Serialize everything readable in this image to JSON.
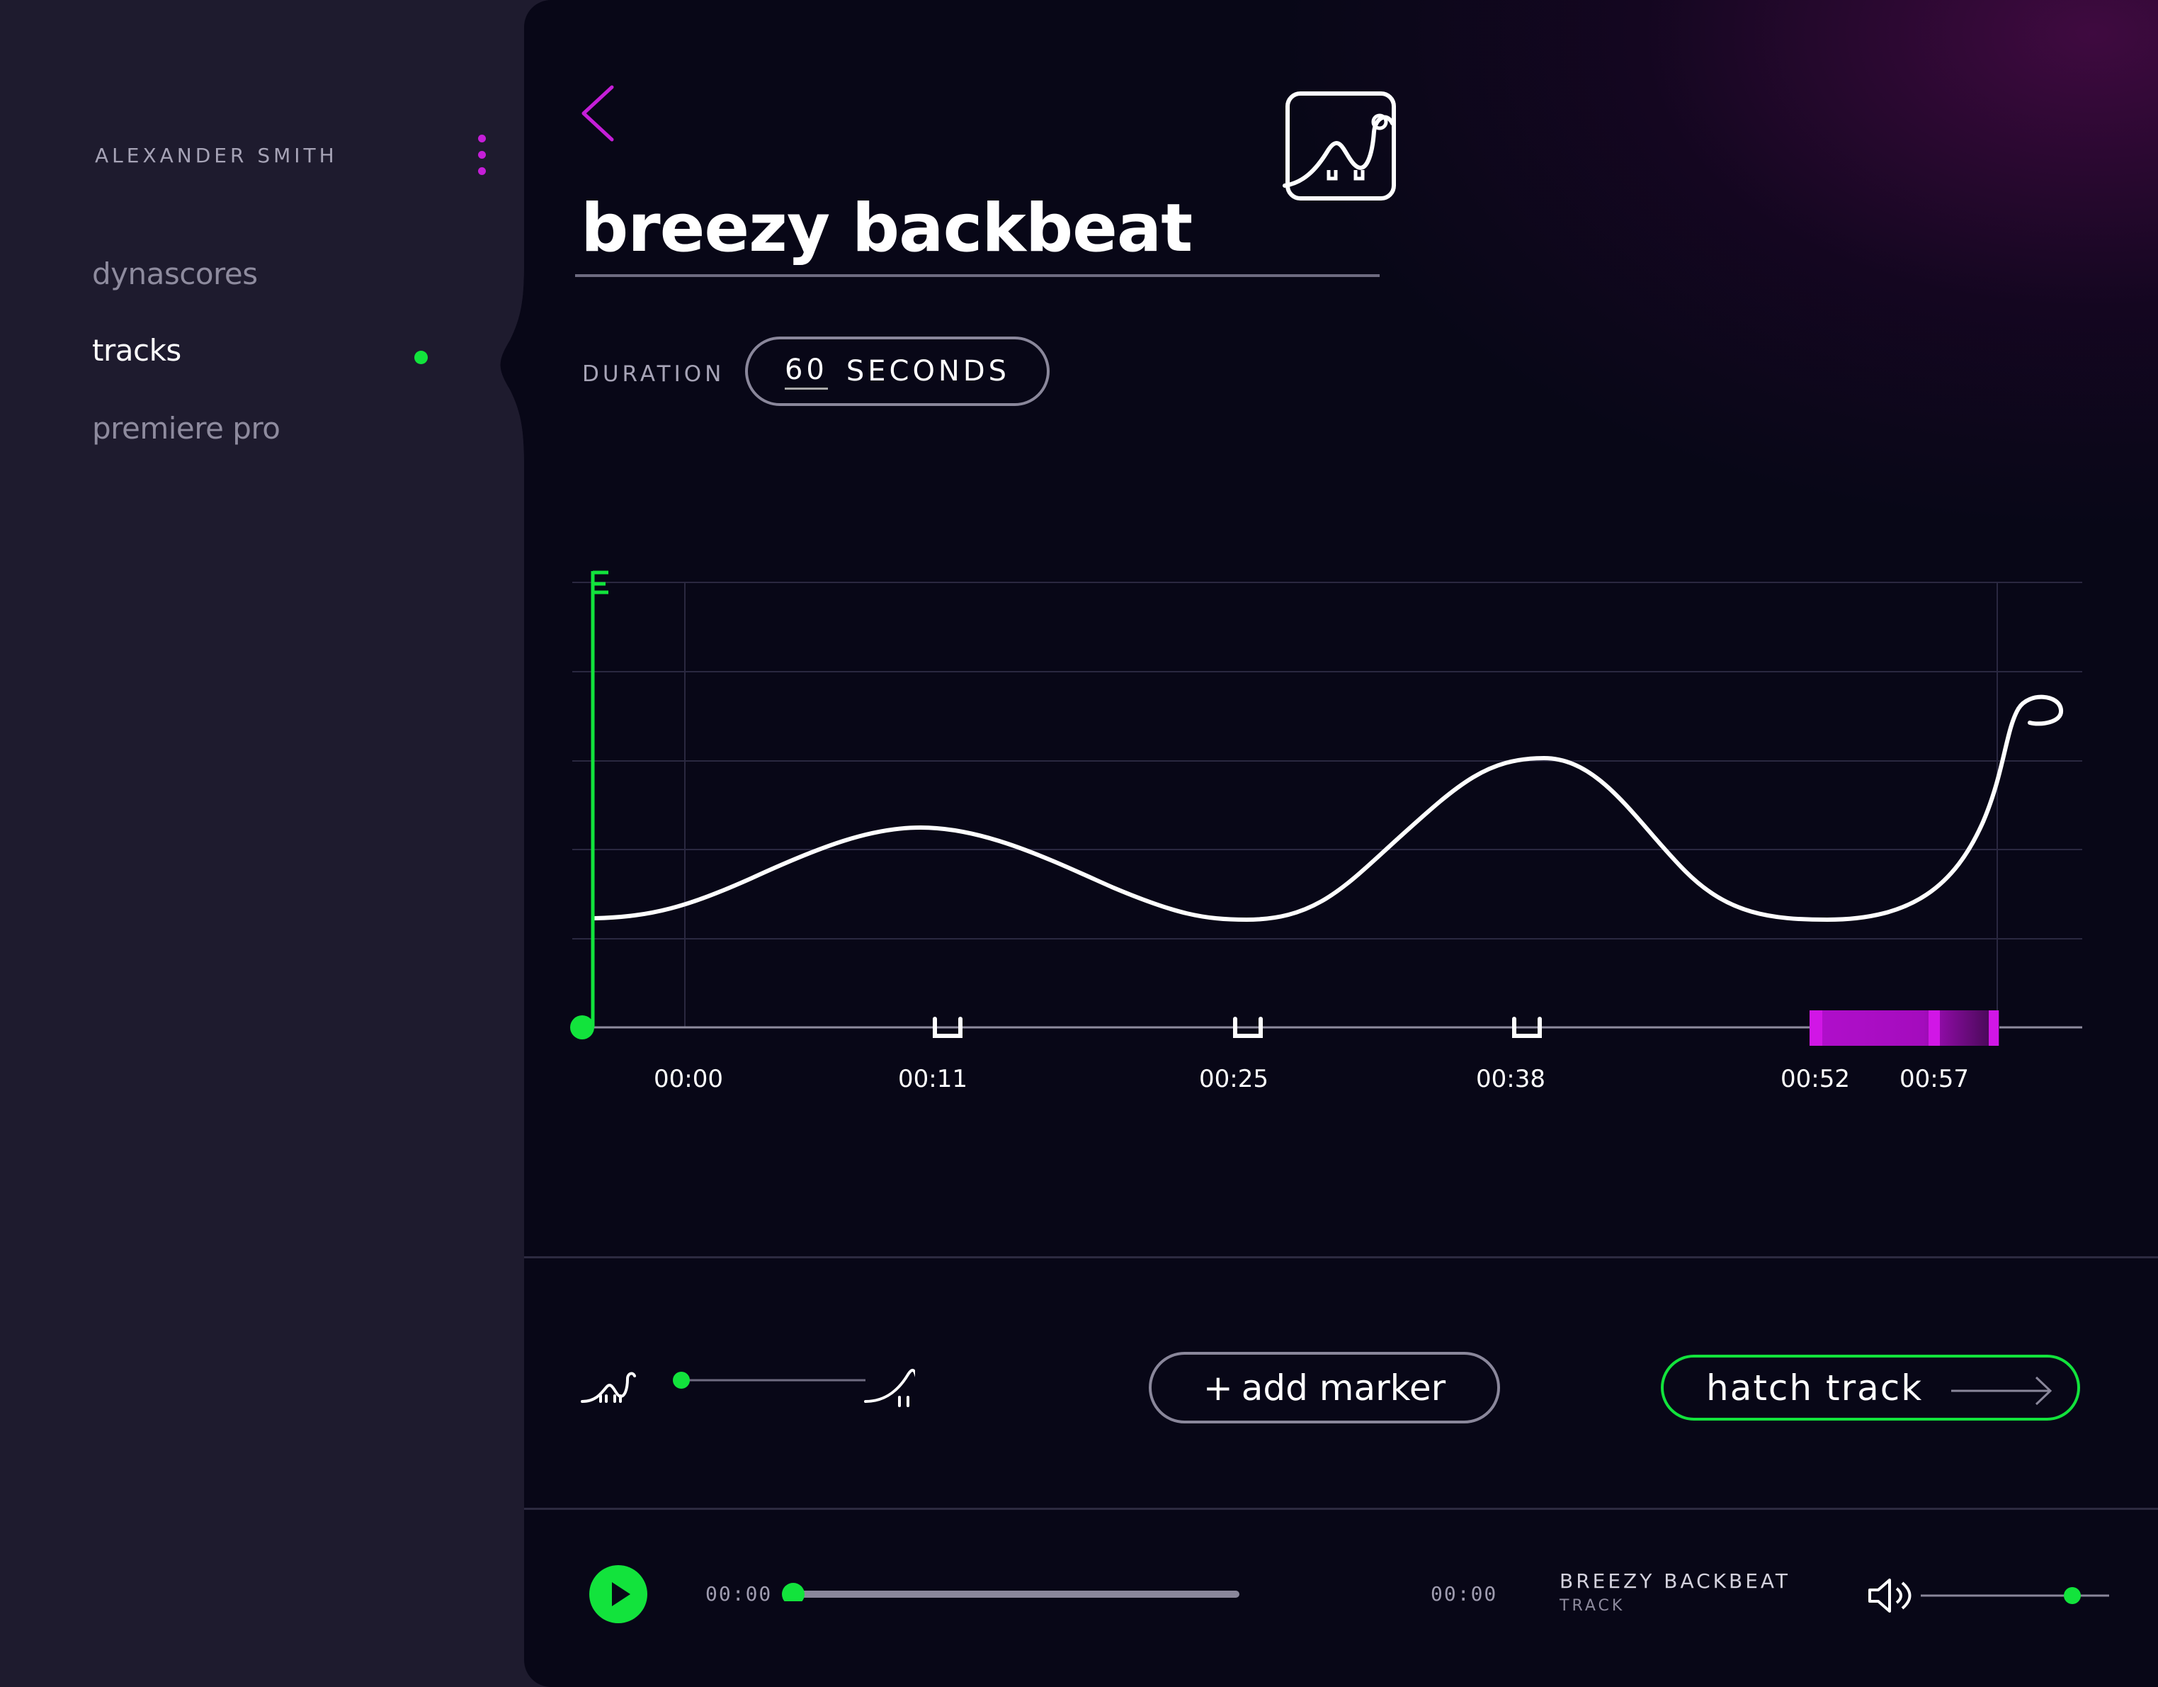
{
  "sidebar": {
    "user_name": "ALEXANDER SMITH",
    "nav": [
      {
        "label": "dynascores",
        "active": false
      },
      {
        "label": "tracks",
        "active": true
      },
      {
        "label": "premiere pro",
        "active": false
      }
    ]
  },
  "track": {
    "title": "breezy backbeat",
    "duration_label": "DURATION",
    "duration_value": "60",
    "duration_unit": "SECONDS"
  },
  "timeline": {
    "markers": [
      "00:00",
      "00:11",
      "00:25",
      "00:38",
      "00:52",
      "00:57"
    ],
    "colors": {
      "playhead": "#12e33c",
      "curve": "#ffffff",
      "ending": "#b10fcc"
    }
  },
  "controls": {
    "add_marker_label": "add marker",
    "add_marker_plus": "+",
    "hatch_label": "hatch track",
    "intensity_level": 0.0
  },
  "player": {
    "current_time": "00:00",
    "total_time": "00:00",
    "title": "BREEZY BACKBEAT",
    "subtitle": "TRACK",
    "progress": 0.0,
    "volume": 0.8
  },
  "colors": {
    "accent_green": "#12e33c",
    "accent_magenta": "#c51ed8",
    "sidebar_bg": "#1e1b2e",
    "panel_bg": "#080717"
  }
}
